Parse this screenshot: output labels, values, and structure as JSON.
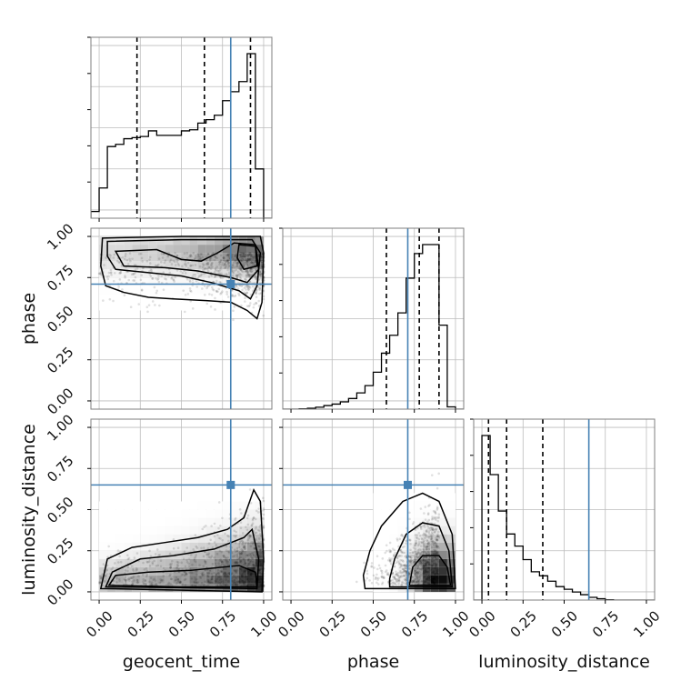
{
  "chart_data": {
    "type": "corner",
    "parameters": [
      {
        "key": "geocent_time",
        "label": "geocent_time"
      },
      {
        "key": "phase",
        "label": "phase"
      },
      {
        "key": "luminosity_distance",
        "label": "luminosity_distance"
      }
    ],
    "axis_range": [
      -0.05,
      1.05
    ],
    "tick_values": [
      0.0,
      0.25,
      0.5,
      0.75,
      1.0
    ],
    "tick_labels": [
      "0.00",
      "0.25",
      "0.50",
      "0.75",
      "1.00"
    ],
    "grid": true,
    "truths": {
      "geocent_time": 0.8,
      "phase": 0.71,
      "luminosity_distance": 0.65
    },
    "truth_color": "#4682b4",
    "quantiles": {
      "geocent_time": [
        0.23,
        0.64,
        0.92
      ],
      "phase": [
        0.58,
        0.78,
        0.9
      ],
      "luminosity_distance": [
        0.04,
        0.15,
        0.37
      ]
    },
    "histograms": {
      "geocent_time": {
        "edges": [
          -0.05,
          0.0,
          0.05,
          0.1,
          0.15,
          0.2,
          0.25,
          0.3,
          0.35,
          0.4,
          0.45,
          0.5,
          0.55,
          0.6,
          0.65,
          0.7,
          0.75,
          0.8,
          0.85,
          0.9,
          0.95,
          1.0,
          1.05
        ],
        "counts": [
          0.06,
          0.27,
          0.64,
          0.66,
          0.71,
          0.72,
          0.73,
          0.78,
          0.74,
          0.74,
          0.74,
          0.78,
          0.79,
          0.85,
          0.88,
          0.92,
          1.05,
          1.13,
          1.22,
          1.47,
          0.44,
          0.0
        ]
      },
      "phase": {
        "edges": [
          -0.05,
          0.0,
          0.05,
          0.1,
          0.15,
          0.2,
          0.25,
          0.3,
          0.35,
          0.4,
          0.45,
          0.5,
          0.55,
          0.6,
          0.65,
          0.7,
          0.75,
          0.8,
          0.85,
          0.9,
          0.95,
          1.0,
          1.05
        ],
        "counts": [
          0.0,
          0.0,
          0.003,
          0.008,
          0.017,
          0.032,
          0.045,
          0.065,
          0.095,
          0.145,
          0.21,
          0.33,
          0.5,
          0.66,
          0.86,
          1.17,
          1.39,
          1.47,
          1.47,
          0.75,
          0.02,
          0.0
        ]
      },
      "luminosity_distance": {
        "edges": [
          -0.05,
          0.0,
          0.05,
          0.1,
          0.15,
          0.2,
          0.25,
          0.3,
          0.35,
          0.4,
          0.45,
          0.5,
          0.55,
          0.6,
          0.65,
          0.7,
          0.75,
          0.8,
          0.85,
          0.9,
          0.95,
          1.0,
          1.05
        ],
        "counts": [
          0.0,
          1.22,
          0.93,
          0.66,
          0.49,
          0.4,
          0.3,
          0.21,
          0.18,
          0.14,
          0.1,
          0.08,
          0.06,
          0.04,
          0.02,
          0.01,
          0.002,
          0.0,
          0.0,
          0.0,
          0.0,
          0.0
        ]
      }
    }
  }
}
